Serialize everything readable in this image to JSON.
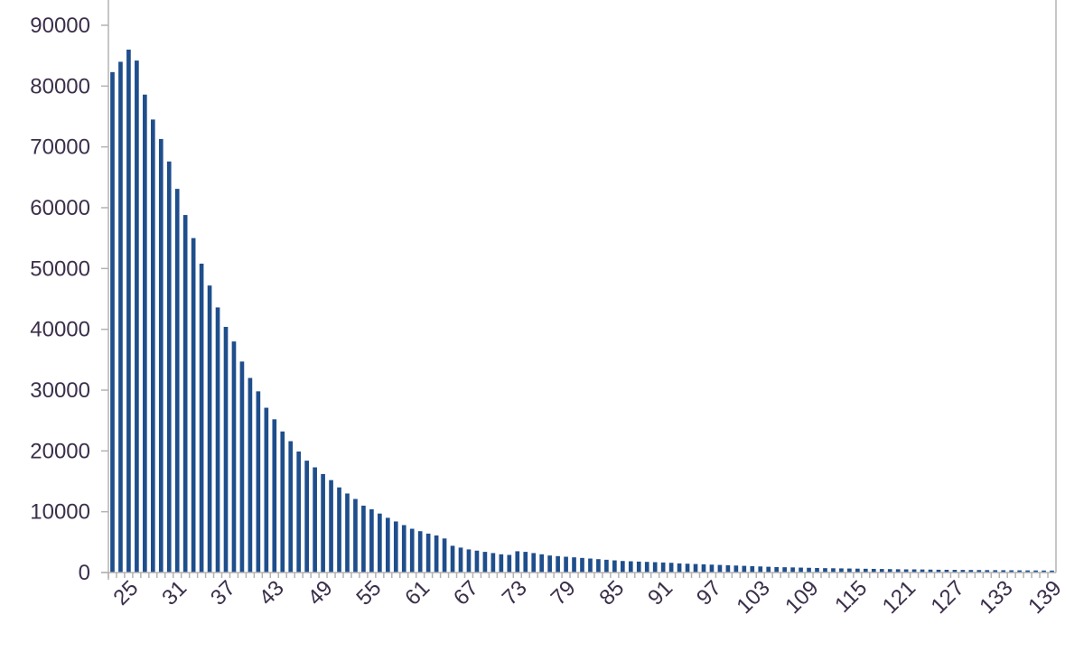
{
  "chart_data": {
    "type": "bar",
    "title": "",
    "xlabel": "",
    "ylabel": "",
    "ylim": [
      0,
      90000
    ],
    "yticks": [
      0,
      10000,
      20000,
      30000,
      40000,
      50000,
      60000,
      70000,
      80000,
      90000
    ],
    "xtick_labels": [
      "25",
      "31",
      "37",
      "43",
      "49",
      "55",
      "61",
      "67",
      "73",
      "79",
      "85",
      "91",
      "97",
      "103",
      "109",
      "115",
      "121",
      "127",
      "133",
      "139"
    ],
    "x_start": 25,
    "x_end": 141,
    "grid": false,
    "legend": "none",
    "bar_color": "#1f4e8c",
    "values": [
      82300,
      84000,
      86000,
      84200,
      78600,
      74500,
      71300,
      67600,
      63100,
      58800,
      55000,
      50800,
      47200,
      43600,
      40400,
      38000,
      34700,
      32000,
      29800,
      27100,
      25200,
      23200,
      21600,
      19900,
      18400,
      17300,
      16200,
      15200,
      14000,
      13000,
      12100,
      11000,
      10400,
      9700,
      9000,
      8400,
      7800,
      7200,
      6800,
      6400,
      6100,
      5600,
      4400,
      4100,
      3800,
      3600,
      3400,
      3200,
      3000,
      2900,
      3500,
      3400,
      3200,
      3000,
      2800,
      2700,
      2600,
      2500,
      2400,
      2300,
      2200,
      2100,
      2000,
      1900,
      1850,
      1800,
      1750,
      1700,
      1650,
      1600,
      1500,
      1450,
      1400,
      1350,
      1300,
      1250,
      1200,
      1150,
      1100,
      1050,
      1000,
      950,
      900,
      870,
      840,
      810,
      780,
      750,
      720,
      700,
      680,
      660,
      640,
      620,
      600,
      580,
      560,
      540,
      520,
      520,
      500,
      480,
      460,
      450,
      440,
      430,
      420,
      410,
      400,
      390,
      380,
      370,
      360,
      350,
      340,
      330,
      320
    ]
  }
}
